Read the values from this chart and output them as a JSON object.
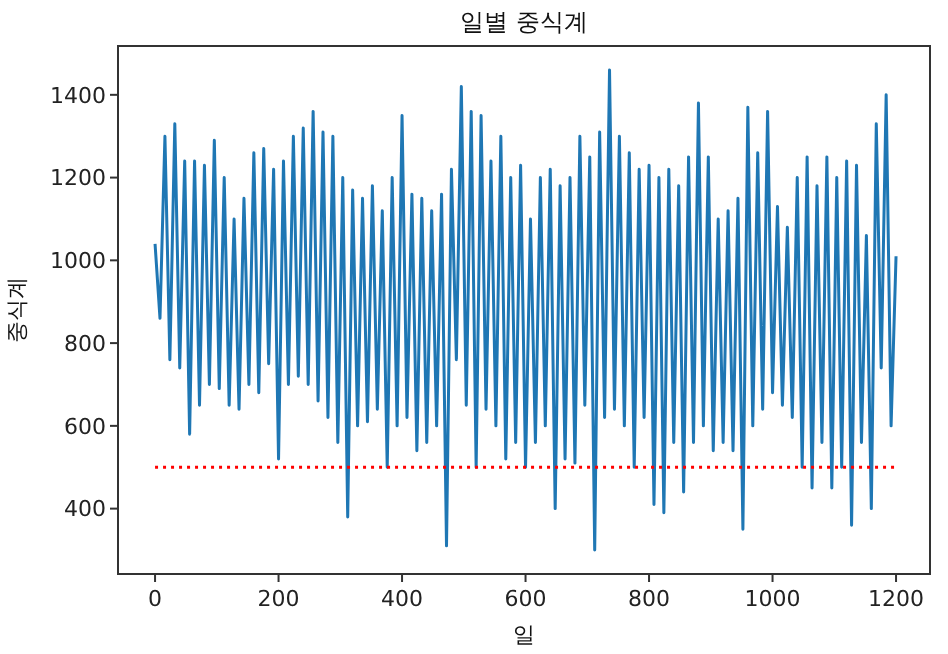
{
  "chart_data": {
    "type": "line",
    "title": "일별 중식계",
    "xlabel": "일",
    "ylabel": "중식계",
    "x": [
      0,
      8,
      16,
      24,
      32,
      40,
      48,
      56,
      64,
      72,
      80,
      88,
      96,
      104,
      112,
      120,
      128,
      136,
      144,
      152,
      160,
      168,
      176,
      184,
      192,
      200,
      208,
      216,
      224,
      232,
      240,
      248,
      256,
      264,
      272,
      280,
      288,
      296,
      304,
      312,
      320,
      328,
      336,
      344,
      352,
      360,
      368,
      376,
      384,
      392,
      400,
      408,
      416,
      424,
      432,
      440,
      448,
      456,
      464,
      472,
      480,
      488,
      496,
      504,
      512,
      520,
      528,
      536,
      544,
      552,
      560,
      568,
      576,
      584,
      592,
      600,
      608,
      616,
      624,
      632,
      640,
      648,
      656,
      664,
      672,
      680,
      688,
      696,
      704,
      712,
      720,
      728,
      736,
      744,
      752,
      760,
      768,
      776,
      784,
      792,
      800,
      808,
      816,
      824,
      832,
      840,
      848,
      856,
      864,
      872,
      880,
      888,
      896,
      904,
      912,
      920,
      928,
      936,
      944,
      952,
      960,
      968,
      976,
      984,
      992,
      1000,
      1008,
      1016,
      1024,
      1032,
      1040,
      1048,
      1056,
      1064,
      1072,
      1080,
      1088,
      1096,
      1104,
      1112,
      1120,
      1128,
      1136,
      1144,
      1152,
      1160,
      1168,
      1176,
      1184,
      1192,
      1200
    ],
    "series": [
      {
        "color": "#1f77b4",
        "values": [
          1040,
          860,
          1300,
          760,
          1330,
          740,
          1240,
          580,
          1240,
          650,
          1230,
          700,
          1290,
          690,
          1200,
          650,
          1100,
          640,
          1150,
          700,
          1260,
          680,
          1270,
          750,
          1220,
          520,
          1240,
          700,
          1300,
          720,
          1320,
          700,
          1360,
          660,
          1310,
          620,
          1300,
          560,
          1200,
          380,
          1170,
          600,
          1150,
          610,
          1180,
          640,
          1120,
          500,
          1200,
          600,
          1350,
          620,
          1160,
          540,
          1150,
          560,
          1120,
          600,
          1160,
          310,
          1220,
          760,
          1420,
          650,
          1360,
          500,
          1350,
          640,
          1240,
          600,
          1300,
          520,
          1200,
          560,
          1230,
          500,
          1100,
          560,
          1200,
          600,
          1220,
          400,
          1180,
          520,
          1200,
          510,
          1300,
          650,
          1250,
          300,
          1310,
          620,
          1460,
          640,
          1300,
          600,
          1260,
          500,
          1220,
          620,
          1230,
          410,
          1200,
          390,
          1220,
          560,
          1180,
          440,
          1250,
          560,
          1380,
          600,
          1250,
          540,
          1100,
          560,
          1120,
          540,
          1150,
          350,
          1370,
          600,
          1260,
          640,
          1360,
          680,
          1130,
          650,
          1080,
          620,
          1200,
          500,
          1250,
          450,
          1180,
          560,
          1250,
          450,
          1200,
          500,
          1240,
          360,
          1230,
          560,
          1060,
          400,
          1330,
          740,
          1400,
          600,
          1010
        ]
      }
    ],
    "xlim": [
      -60,
      1255
    ],
    "ylim": [
      242,
      1518
    ],
    "xticks": [
      0,
      200,
      400,
      600,
      800,
      1000,
      1200
    ],
    "yticks": [
      400,
      600,
      800,
      1000,
      1200,
      1400
    ],
    "ref_lines": [
      {
        "axis": "y",
        "value": 500,
        "color": "#ff0000",
        "line_style": "dotted"
      }
    ],
    "grid": false
  }
}
